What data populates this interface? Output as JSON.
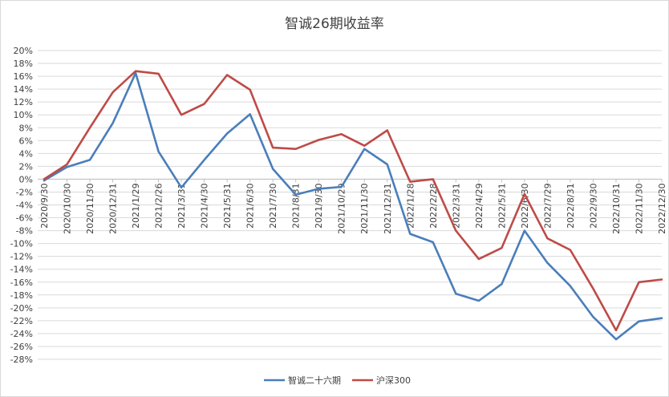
{
  "chart_data": {
    "type": "line",
    "title": "智诚26期收益率",
    "xlabel": "",
    "ylabel": "",
    "ylim": [
      -0.28,
      0.2
    ],
    "ytick_step": 0.02,
    "y_format": "percent",
    "grid": "horizontal",
    "legend_position": "bottom",
    "categories": [
      "2020/9/30",
      "2020/10/30",
      "2020/11/30",
      "2020/12/31",
      "2021/1/29",
      "2021/2/26",
      "2021/3/31",
      "2021/4/30",
      "2021/5/31",
      "2021/6/30",
      "2021/7/30",
      "2021/8/31",
      "2021/9/30",
      "2021/10/29",
      "2021/11/30",
      "2021/12/31",
      "2022/1/28",
      "2022/2/28",
      "2022/3/31",
      "2022/4/29",
      "2022/5/31",
      "2022/6/30",
      "2022/7/29",
      "2022/8/31",
      "2022/9/30",
      "2022/10/31",
      "2022/11/30",
      "2022/12/30"
    ],
    "series": [
      {
        "name": "智诚二十六期",
        "color": "#4a7ebb",
        "values": [
          -0.002,
          0.019,
          0.03,
          0.087,
          0.165,
          0.043,
          -0.013,
          0.03,
          0.071,
          0.101,
          0.016,
          -0.024,
          -0.015,
          -0.012,
          0.047,
          0.023,
          -0.085,
          -0.098,
          -0.178,
          -0.189,
          -0.163,
          -0.08,
          -0.13,
          -0.166,
          -0.214,
          -0.249,
          -0.221,
          -0.216
        ]
      },
      {
        "name": "沪深300",
        "color": "#be4b48",
        "values": [
          0.0,
          0.023,
          0.08,
          0.135,
          0.168,
          0.164,
          0.1,
          0.117,
          0.162,
          0.139,
          0.049,
          0.047,
          0.061,
          0.07,
          0.052,
          0.076,
          -0.004,
          0.0,
          -0.08,
          -0.124,
          -0.107,
          -0.023,
          -0.092,
          -0.11,
          -0.17,
          -0.235,
          -0.16,
          -0.156
        ]
      }
    ]
  }
}
